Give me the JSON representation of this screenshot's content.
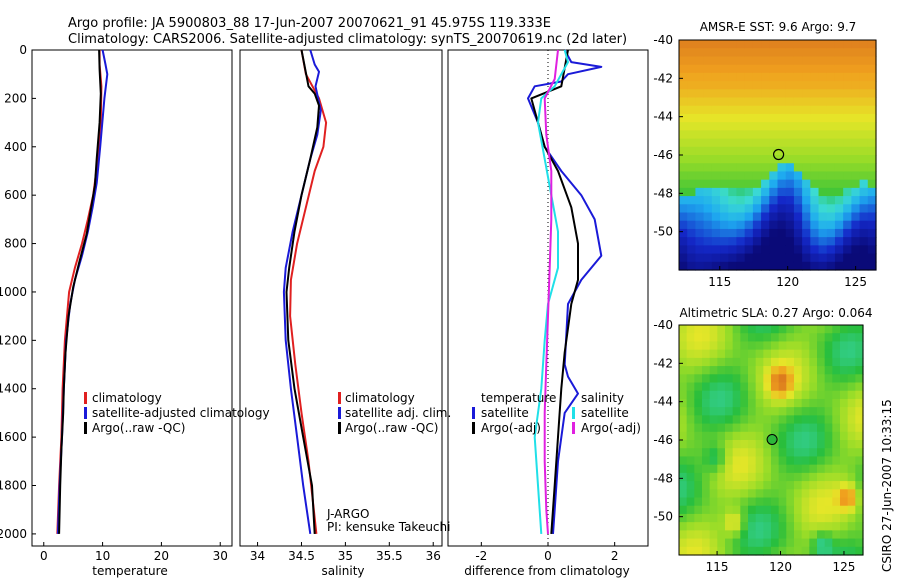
{
  "header": {
    "line1": "Argo profile: JA 5900803_88 17-Jun-2007 20070621_91 45.975S 119.333E",
    "line2": "Climatology: CARS2006. Satellite-adjusted climatology: synTS_20070619.nc (2d later)"
  },
  "side_label": "CSIRO 27-Jun-2007 10:33:15",
  "colors": {
    "red": "#e02020",
    "blue": "#1a1ad8",
    "black": "#000000",
    "cyan": "#20e0e8",
    "magenta": "#e020e0"
  },
  "chart_data": [
    {
      "id": "temperature",
      "type": "line",
      "xlabel": "temperature",
      "xlim": [
        -2,
        32
      ],
      "ylim": [
        0,
        2050
      ],
      "xticks": [
        0,
        10,
        20,
        30
      ],
      "yticks": [
        0,
        200,
        400,
        600,
        800,
        1000,
        1200,
        1400,
        1600,
        1800,
        2000
      ],
      "legend": [
        {
          "label": "climatology",
          "color": "#e02020"
        },
        {
          "label": "satellite-adjusted climatology",
          "color": "#1a1ad8"
        },
        {
          "label": "Argo(..raw -QC)",
          "color": "#000000"
        }
      ],
      "series": [
        {
          "name": "climatology",
          "color": "#e02020",
          "points": [
            [
              9.5,
              0
            ],
            [
              9.5,
              60
            ],
            [
              9.8,
              150
            ],
            [
              9.7,
              300
            ],
            [
              9.2,
              450
            ],
            [
              8.4,
              600
            ],
            [
              7.5,
              700
            ],
            [
              6.5,
              800
            ],
            [
              5.3,
              900
            ],
            [
              4.3,
              1000
            ],
            [
              3.6,
              1200
            ],
            [
              3.2,
              1400
            ],
            [
              3.0,
              1600
            ],
            [
              2.6,
              1800
            ],
            [
              2.3,
              2000
            ]
          ]
        },
        {
          "name": "satellite-adjusted climatology",
          "color": "#1a1ad8",
          "points": [
            [
              10.0,
              0
            ],
            [
              10.5,
              60
            ],
            [
              10.8,
              100
            ],
            [
              10.3,
              200
            ],
            [
              9.6,
              400
            ],
            [
              9.0,
              550
            ],
            [
              8.3,
              650
            ],
            [
              7.5,
              750
            ],
            [
              6.5,
              850
            ],
            [
              5.3,
              950
            ],
            [
              4.5,
              1050
            ],
            [
              3.8,
              1200
            ],
            [
              3.4,
              1400
            ],
            [
              3.1,
              1600
            ],
            [
              2.7,
              1800
            ],
            [
              2.4,
              2000
            ]
          ]
        },
        {
          "name": "Argo(..raw -QC)",
          "color": "#000000",
          "points": [
            [
              9.4,
              0
            ],
            [
              9.5,
              80
            ],
            [
              9.7,
              180
            ],
            [
              9.5,
              300
            ],
            [
              9.0,
              450
            ],
            [
              8.7,
              560
            ],
            [
              8.0,
              660
            ],
            [
              7.3,
              760
            ],
            [
              6.0,
              880
            ],
            [
              5.0,
              980
            ],
            [
              4.2,
              1100
            ],
            [
              3.7,
              1250
            ],
            [
              3.4,
              1400
            ],
            [
              3.3,
              1500
            ],
            [
              3.0,
              1650
            ],
            [
              2.8,
              1800
            ],
            [
              2.6,
              2000
            ]
          ]
        }
      ]
    },
    {
      "id": "salinity",
      "type": "line",
      "xlabel": "salinity",
      "xlim": [
        33.8,
        36.1
      ],
      "ylim": [
        0,
        2050
      ],
      "xticks": [
        34,
        34.5,
        35,
        35.5,
        36
      ],
      "legend": [
        {
          "label": "climatology",
          "color": "#e02020"
        },
        {
          "label": "satellite adj. clim.",
          "color": "#1a1ad8"
        },
        {
          "label": "Argo(..raw -QC)",
          "color": "#000000"
        }
      ],
      "annotations": [
        "J-ARGO",
        "PI: kensuke Takeuchi"
      ],
      "series": [
        {
          "name": "climatology",
          "color": "#e02020",
          "points": [
            [
              34.5,
              0
            ],
            [
              34.55,
              100
            ],
            [
              34.7,
              200
            ],
            [
              34.78,
              300
            ],
            [
              34.75,
              400
            ],
            [
              34.65,
              500
            ],
            [
              34.55,
              650
            ],
            [
              34.45,
              800
            ],
            [
              34.38,
              950
            ],
            [
              34.37,
              1100
            ],
            [
              34.43,
              1300
            ],
            [
              34.5,
              1500
            ],
            [
              34.58,
              1700
            ],
            [
              34.64,
              1900
            ],
            [
              34.67,
              2000
            ]
          ]
        },
        {
          "name": "satellite adj. clim.",
          "color": "#1a1ad8",
          "points": [
            [
              34.6,
              0
            ],
            [
              34.65,
              60
            ],
            [
              34.7,
              90
            ],
            [
              34.66,
              150
            ],
            [
              34.72,
              250
            ],
            [
              34.68,
              350
            ],
            [
              34.6,
              450
            ],
            [
              34.5,
              600
            ],
            [
              34.4,
              750
            ],
            [
              34.32,
              900
            ],
            [
              34.3,
              1000
            ],
            [
              34.32,
              1200
            ],
            [
              34.38,
              1400
            ],
            [
              34.45,
              1600
            ],
            [
              34.52,
              1800
            ],
            [
              34.6,
              2000
            ]
          ]
        },
        {
          "name": "Argo(..raw -QC)",
          "color": "#000000",
          "points": [
            [
              34.5,
              0
            ],
            [
              34.58,
              150
            ],
            [
              34.65,
              180
            ],
            [
              34.7,
              230
            ],
            [
              34.68,
              320
            ],
            [
              34.6,
              450
            ],
            [
              34.5,
              600
            ],
            [
              34.42,
              750
            ],
            [
              34.36,
              900
            ],
            [
              34.33,
              1000
            ],
            [
              34.35,
              1200
            ],
            [
              34.42,
              1400
            ],
            [
              34.52,
              1600
            ],
            [
              34.62,
              1800
            ],
            [
              34.65,
              2000
            ]
          ]
        }
      ]
    },
    {
      "id": "difference",
      "type": "line",
      "xlabel": "difference from climatology",
      "xlim": [
        -3,
        3
      ],
      "ylim": [
        0,
        2050
      ],
      "xticks": [
        -2,
        0,
        2
      ],
      "legend_left_title": "temperature",
      "legend_right_title": "salinity",
      "legend": [
        {
          "label": "satellite",
          "color": "#1a1ad8"
        },
        {
          "label": "Argo(-adj)",
          "color": "#000000"
        },
        {
          "label": "satellite",
          "color": "#20e0e8"
        },
        {
          "label": "Argo(-adj)",
          "color": "#e020e0"
        }
      ],
      "series": [
        {
          "name": "temperature satellite",
          "color": "#1a1ad8",
          "points": [
            [
              0.5,
              0
            ],
            [
              0.7,
              50
            ],
            [
              1.6,
              70
            ],
            [
              0.6,
              100
            ],
            [
              0.4,
              130
            ],
            [
              -0.4,
              150
            ],
            [
              -0.6,
              200
            ],
            [
              -0.3,
              300
            ],
            [
              -0.1,
              400
            ],
            [
              0.4,
              500
            ],
            [
              1.0,
              600
            ],
            [
              1.4,
              700
            ],
            [
              1.6,
              850
            ],
            [
              1.0,
              950
            ],
            [
              0.6,
              1050
            ],
            [
              0.5,
              1300
            ],
            [
              0.6,
              1350
            ],
            [
              0.9,
              1420
            ],
            [
              0.5,
              1500
            ],
            [
              0.3,
              1700
            ],
            [
              0.2,
              1900
            ],
            [
              0.15,
              2000
            ]
          ]
        },
        {
          "name": "temperature Argo(-adj)",
          "color": "#000000",
          "points": [
            [
              0.6,
              0
            ],
            [
              0.4,
              150
            ],
            [
              -0.5,
              200
            ],
            [
              -0.1,
              400
            ],
            [
              0.3,
              500
            ],
            [
              0.7,
              650
            ],
            [
              0.9,
              800
            ],
            [
              0.9,
              950
            ],
            [
              0.7,
              1050
            ],
            [
              0.5,
              1250
            ],
            [
              0.4,
              1400
            ],
            [
              0.3,
              1600
            ],
            [
              0.2,
              1800
            ],
            [
              0.1,
              2000
            ]
          ]
        },
        {
          "name": "salinity satellite",
          "color": "#20e0e8",
          "points": [
            [
              0.5,
              0
            ],
            [
              0.6,
              50
            ],
            [
              0.4,
              100
            ],
            [
              0.2,
              150
            ],
            [
              -0.2,
              200
            ],
            [
              -0.3,
              300
            ],
            [
              -0.1,
              450
            ],
            [
              0.1,
              600
            ],
            [
              0.3,
              750
            ],
            [
              0.3,
              900
            ],
            [
              0.0,
              1050
            ],
            [
              -0.1,
              1200
            ],
            [
              -0.2,
              1400
            ],
            [
              -0.4,
              1600
            ],
            [
              -0.3,
              1800
            ],
            [
              -0.2,
              2000
            ]
          ]
        },
        {
          "name": "salinity Argo(-adj)",
          "color": "#e020e0",
          "points": [
            [
              0.3,
              0
            ],
            [
              0.2,
              120
            ],
            [
              -0.1,
              200
            ],
            [
              -0.05,
              350
            ],
            [
              0.1,
              500
            ],
            [
              0.1,
              700
            ],
            [
              0.05,
              900
            ],
            [
              0.0,
              1100
            ],
            [
              -0.05,
              1300
            ],
            [
              -0.1,
              1500
            ],
            [
              -0.1,
              1700
            ],
            [
              -0.05,
              1900
            ],
            [
              0.0,
              2000
            ]
          ]
        }
      ]
    },
    {
      "id": "sst_map",
      "type": "heatmap",
      "title": "AMSR-E SST: 9.6 Argo: 9.7",
      "xlim": [
        112,
        126.5
      ],
      "ylim": [
        -52,
        -40
      ],
      "xticks": [
        115,
        120,
        125
      ],
      "yticks": [
        -40,
        -42,
        -44,
        -46,
        -48,
        -50
      ],
      "marker": {
        "lon": 119.333,
        "lat": -45.975
      }
    },
    {
      "id": "sla_map",
      "type": "heatmap",
      "title": "Altimetric SLA: 0.27 Argo: 0.064",
      "xlim": [
        112,
        126.5
      ],
      "ylim": [
        -52,
        -40
      ],
      "xticks": [
        115,
        120,
        125
      ],
      "yticks": [
        -40,
        -42,
        -44,
        -46,
        -48,
        -50
      ],
      "marker": {
        "lon": 119.333,
        "lat": -45.975
      }
    }
  ]
}
